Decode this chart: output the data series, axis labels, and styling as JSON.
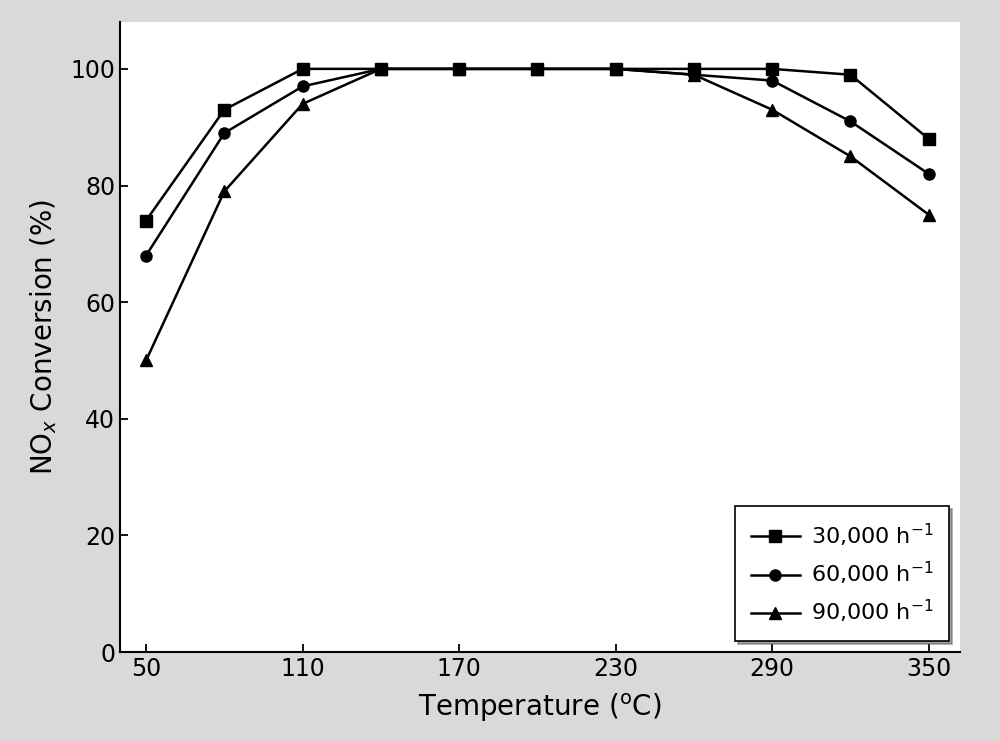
{
  "temperatures": [
    50,
    80,
    110,
    140,
    170,
    200,
    230,
    260,
    290,
    320,
    350
  ],
  "series": [
    {
      "label": "30,000 h$^{-1}$",
      "marker": "s",
      "values": [
        74,
        93,
        100,
        100,
        100,
        100,
        100,
        100,
        100,
        99,
        88
      ]
    },
    {
      "label": "60,000 h$^{-1}$",
      "marker": "o",
      "values": [
        68,
        89,
        97,
        100,
        100,
        100,
        100,
        99,
        98,
        91,
        82
      ]
    },
    {
      "label": "90,000 h$^{-1}$",
      "marker": "^",
      "values": [
        50,
        79,
        94,
        100,
        100,
        100,
        100,
        99,
        93,
        85,
        75
      ]
    }
  ],
  "xlabel": "Temperature ($^{\\rm o}$C)",
  "xlim": [
    40,
    362
  ],
  "ylim": [
    0,
    108
  ],
  "xticks": [
    50,
    110,
    170,
    230,
    290,
    350
  ],
  "yticks": [
    0,
    20,
    40,
    60,
    80,
    100
  ],
  "line_color": "#000000",
  "figure_facecolor": "#d9d9d9",
  "plot_facecolor": "#ffffff",
  "linewidth": 1.8,
  "markersize": 8,
  "tick_labelsize": 17,
  "xlabel_fontsize": 20,
  "ylabel_fontsize": 20,
  "legend_fontsize": 16
}
